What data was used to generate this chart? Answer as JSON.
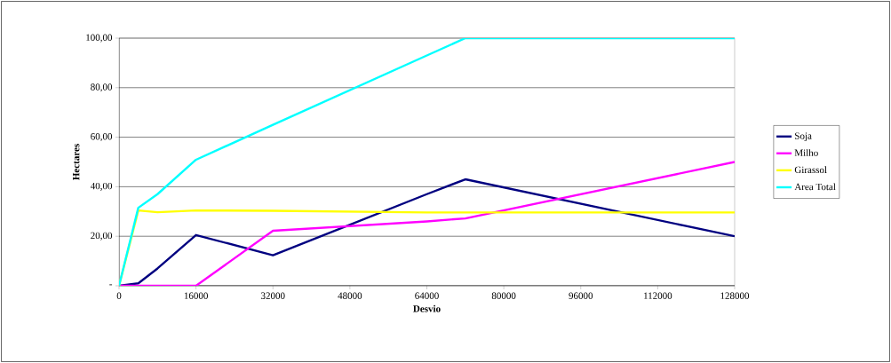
{
  "chart_data": {
    "type": "line",
    "x": [
      0,
      4000,
      8000,
      16000,
      32000,
      64000,
      72000,
      128000
    ],
    "series": [
      {
        "name": "Soja",
        "color": "#000080",
        "values": [
          0,
          1,
          7,
          20.5,
          12.3,
          37,
          43,
          20
        ]
      },
      {
        "name": "Milho",
        "color": "#ff00ff",
        "values": [
          0,
          0,
          0,
          0,
          22.2,
          26,
          27.2,
          50
        ]
      },
      {
        "name": "Girassol",
        "color": "#ffff00",
        "values": [
          0,
          30.4,
          29.7,
          30.4,
          30.3,
          29.6,
          29.6,
          29.6
        ]
      },
      {
        "name": "Area Total",
        "color": "#00ffff",
        "values": [
          0,
          31.5,
          37,
          50.9,
          65,
          93,
          100,
          100
        ]
      }
    ],
    "xlabel": "Desvio",
    "ylabel": "Hectares",
    "xlim": [
      0,
      128000
    ],
    "xticks": [
      0,
      16000,
      32000,
      48000,
      64000,
      80000,
      96000,
      112000,
      128000
    ],
    "ylim": [
      0,
      100
    ],
    "yticks": [
      {
        "value": 0,
        "label": "-"
      },
      {
        "value": 20,
        "label": "20,00"
      },
      {
        "value": 40,
        "label": "40,00"
      },
      {
        "value": 60,
        "label": "60,00"
      },
      {
        "value": 80,
        "label": "80,00"
      },
      {
        "value": 100,
        "label": "100,00"
      }
    ],
    "grid": "y",
    "legend": "right",
    "marker": "none",
    "line_style": "solid"
  }
}
